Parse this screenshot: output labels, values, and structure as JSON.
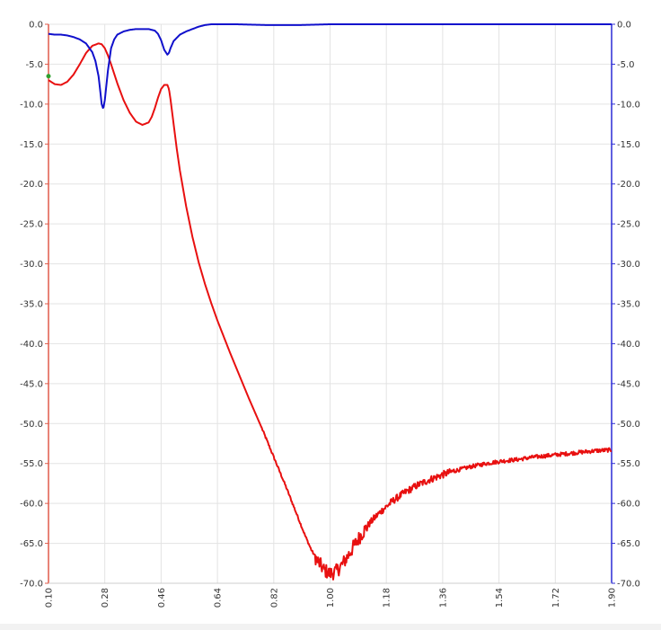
{
  "chart_data": {
    "type": "line",
    "title": "",
    "xlabel": "",
    "ylabel_left": "",
    "ylabel_right": "",
    "xlim": [
      0.1,
      1.9
    ],
    "ylim_left": [
      -70.0,
      0.0
    ],
    "ylim_right": [
      -70.0,
      0.0
    ],
    "grid": true,
    "legend": "none",
    "x_ticks": [
      "0.10",
      "0.28",
      "0.46",
      "0.64",
      "0.82",
      "1.00",
      "1.18",
      "1.36",
      "1.54",
      "1.72",
      "1.90"
    ],
    "y_ticks_left": [
      "0.0",
      "-5.0",
      "-10.0",
      "-15.0",
      "-20.0",
      "-25.0",
      "-30.0",
      "-35.0",
      "-40.0",
      "-45.0",
      "-50.0",
      "-55.0",
      "-60.0",
      "-65.0",
      "-70.0"
    ],
    "y_ticks_right": [
      "0.0",
      "-5.0",
      "-10.0",
      "-15.0",
      "-20.0",
      "-25.0",
      "-30.0",
      "-35.0",
      "-40.0",
      "-45.0",
      "-50.0",
      "-55.0",
      "-60.0",
      "-65.0",
      "-70.0"
    ],
    "colors": {
      "left_axis": "#e05a4a",
      "right_axis": "#2b2bd6",
      "red_series": "#e81010",
      "blue_series": "#1010cc",
      "marker": "#2ea02e"
    },
    "series": [
      {
        "axis": "left",
        "color": "#e81010",
        "x": [
          0.1,
          0.12,
          0.14,
          0.16,
          0.18,
          0.2,
          0.22,
          0.24,
          0.26,
          0.27,
          0.28,
          0.29,
          0.3,
          0.32,
          0.34,
          0.36,
          0.38,
          0.4,
          0.42,
          0.43,
          0.44,
          0.45,
          0.46,
          0.47,
          0.48,
          0.485,
          0.49,
          0.5,
          0.51,
          0.52,
          0.54,
          0.56,
          0.58,
          0.6,
          0.62,
          0.64,
          0.66,
          0.68,
          0.7,
          0.72,
          0.74,
          0.76,
          0.78,
          0.8,
          0.82,
          0.84,
          0.86,
          0.88,
          0.9,
          0.92,
          0.94,
          0.96,
          0.98,
          1.0,
          1.02,
          1.04,
          1.06,
          1.08,
          1.1,
          1.12,
          1.14,
          1.16,
          1.18,
          1.2,
          1.24,
          1.28,
          1.32,
          1.36,
          1.4,
          1.45,
          1.5,
          1.55,
          1.6,
          1.65,
          1.7,
          1.75,
          1.8,
          1.85,
          1.9
        ],
        "y": [
          -7.0,
          -7.5,
          -7.6,
          -7.2,
          -6.3,
          -5.0,
          -3.6,
          -2.7,
          -2.4,
          -2.5,
          -3.0,
          -3.9,
          -5.0,
          -7.4,
          -9.5,
          -11.1,
          -12.2,
          -12.6,
          -12.3,
          -11.6,
          -10.5,
          -9.2,
          -8.1,
          -7.6,
          -7.6,
          -8.1,
          -9.4,
          -12.5,
          -15.6,
          -18.3,
          -22.8,
          -26.6,
          -29.8,
          -32.5,
          -34.9,
          -37.1,
          -39.1,
          -41.1,
          -43.0,
          -44.9,
          -46.8,
          -48.6,
          -50.4,
          -52.3,
          -54.2,
          -56.1,
          -58.0,
          -60.0,
          -62.0,
          -64.0,
          -65.8,
          -67.2,
          -68.3,
          -68.8,
          -68.5,
          -67.6,
          -66.4,
          -65.1,
          -63.9,
          -62.8,
          -61.9,
          -61.1,
          -60.4,
          -59.7,
          -58.6,
          -57.7,
          -57.0,
          -56.4,
          -55.9,
          -55.4,
          -55.0,
          -54.7,
          -54.5,
          -54.2,
          -54.0,
          -53.8,
          -53.6,
          -53.4,
          -53.3
        ]
      },
      {
        "axis": "right",
        "color": "#1010cc",
        "x": [
          0.1,
          0.12,
          0.14,
          0.16,
          0.18,
          0.2,
          0.22,
          0.24,
          0.25,
          0.26,
          0.265,
          0.27,
          0.275,
          0.28,
          0.29,
          0.3,
          0.31,
          0.32,
          0.34,
          0.36,
          0.38,
          0.4,
          0.42,
          0.44,
          0.45,
          0.46,
          0.47,
          0.48,
          0.485,
          0.49,
          0.5,
          0.52,
          0.54,
          0.56,
          0.58,
          0.6,
          0.62,
          0.64,
          0.7,
          0.8,
          0.9,
          1.0,
          1.2,
          1.4,
          1.6,
          1.9
        ],
        "y": [
          -1.2,
          -1.3,
          -1.3,
          -1.4,
          -1.6,
          -1.9,
          -2.4,
          -3.5,
          -4.6,
          -6.5,
          -8.2,
          -10.0,
          -10.6,
          -9.5,
          -5.8,
          -3.0,
          -1.9,
          -1.3,
          -0.9,
          -0.7,
          -0.6,
          -0.6,
          -0.6,
          -0.8,
          -1.2,
          -2.0,
          -3.2,
          -3.8,
          -3.6,
          -3.0,
          -2.1,
          -1.3,
          -0.9,
          -0.6,
          -0.3,
          -0.1,
          0.0,
          0.0,
          0.0,
          -0.1,
          -0.1,
          0.0,
          0.0,
          0.0,
          0.0,
          0.0
        ]
      }
    ],
    "markers": [
      {
        "x": 0.1,
        "y": -6.5,
        "axis": "left",
        "color": "#2ea02e"
      }
    ]
  }
}
